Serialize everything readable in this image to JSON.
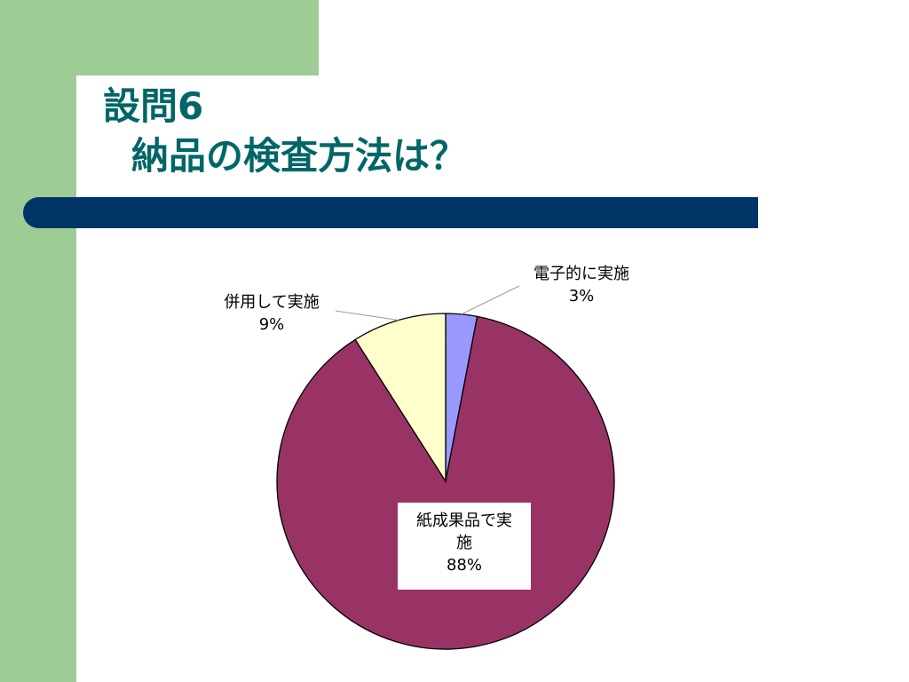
{
  "slide": {
    "title_line1": "設問6",
    "title_line2": "納品の検査方法は？"
  },
  "colors": {
    "background_accent": "#9dcc95",
    "bar": "#003366",
    "title": "#006666"
  },
  "chart_data": {
    "type": "pie",
    "title": "",
    "slices": [
      {
        "label": "電子的に実施",
        "value": 3,
        "percent_label": "3%",
        "color": "#9999ff"
      },
      {
        "label": "紙成果品で実施",
        "label_line1": "紙成果品で実",
        "label_line2": "施",
        "value": 88,
        "percent_label": "88%",
        "color": "#993366"
      },
      {
        "label": "併用して実施",
        "value": 9,
        "percent_label": "9%",
        "color": "#ffffcc"
      }
    ]
  }
}
